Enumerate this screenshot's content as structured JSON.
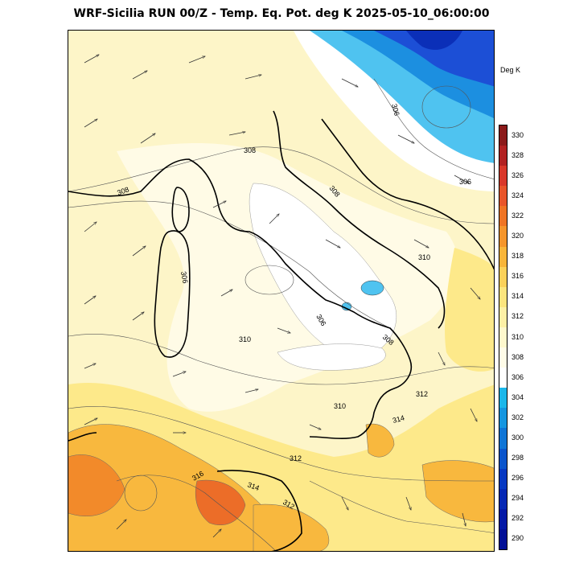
{
  "header": {
    "title": "WRF-Sicilia RUN 00/Z - Temp. Eq. Pot. deg K 2025-05-10_06:00:00"
  },
  "colorbar": {
    "units": "Deg K",
    "levels": [
      "330",
      "328",
      "326",
      "324",
      "322",
      "320",
      "318",
      "316",
      "314",
      "312",
      "310",
      "308",
      "306",
      "304",
      "302",
      "300",
      "298",
      "296",
      "294",
      "292",
      "290"
    ],
    "colors": [
      "#8b1a1a",
      "#b22222",
      "#d9382a",
      "#e8552a",
      "#ef7424",
      "#f5952b",
      "#f8b53a",
      "#fbd15a",
      "#fce57e",
      "#fdf0a6",
      "#fef8cd",
      "#fffce8",
      "#ffffff",
      "#1bb7ea",
      "#1596e0",
      "#0f75d6",
      "#0b55cc",
      "#0839c2",
      "#0628b4",
      "#0419a6",
      "#020f96"
    ]
  },
  "map": {
    "contour_labels": [
      "306",
      "306",
      "308",
      "308",
      "308",
      "306",
      "310",
      "310",
      "306",
      "308",
      "310",
      "312",
      "314",
      "312",
      "316",
      "314",
      "312"
    ],
    "colors": {
      "background": "#fdf5c8",
      "pale": "#fffbe6",
      "white": "#ffffff",
      "yellow": "#fde98a",
      "orange": "#f8b83e",
      "dark_orange": "#f28a2a",
      "red_orange": "#ec6d28",
      "blue_light": "#4fc3f0",
      "blue_mid": "#1c8fe0",
      "blue_dark": "#1c4fd6",
      "navy": "#0b2fb8"
    }
  }
}
